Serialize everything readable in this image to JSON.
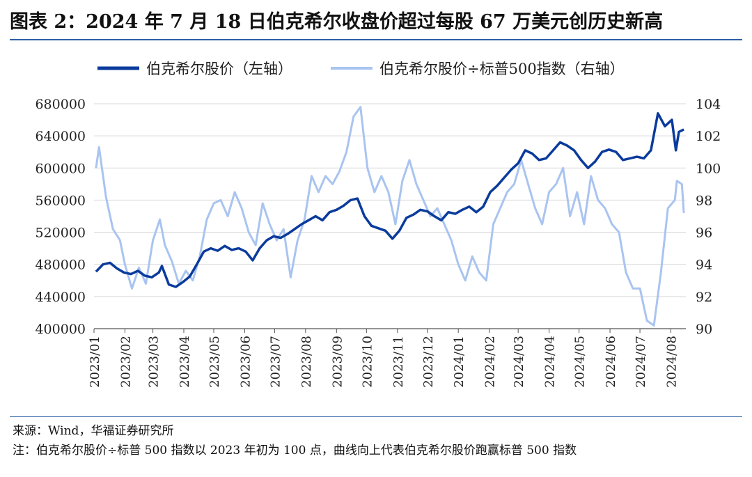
{
  "title": "图表 2：2024 年 7 月 18 日伯克希尔收盘价超过每股 67 万美元创历史新高",
  "footer": {
    "source": "来源：Wind，华福证券研究所",
    "note": "注：伯克希尔股价÷标普 500 指数以 2023 年初为 100 点，曲线向上代表伯克希尔股价跑赢标普 500 指数"
  },
  "colors": {
    "dark_series": "#0a3b9c",
    "light_series": "#a9c4f0",
    "grid": "#d9d9d9",
    "rule": "#2e5fa7"
  },
  "chart_data": {
    "type": "line",
    "x_tick_labels": [
      "2023/01",
      "2023/02",
      "2023/03",
      "2023/04",
      "2023/05",
      "2023/06",
      "2023/07",
      "2023/08",
      "2023/09",
      "2023/10",
      "2023/11",
      "2023/12",
      "2024/01",
      "2024/02",
      "2024/03",
      "2024/04",
      "2024/05",
      "2024/06",
      "2024/07",
      "2024/08"
    ],
    "y_left": {
      "ticks": [
        "400000",
        "440000",
        "480000",
        "520000",
        "560000",
        "600000",
        "640000",
        "680000"
      ],
      "range": [
        400000,
        680000
      ]
    },
    "y_right": {
      "ticks": [
        "90",
        "92",
        "94",
        "96",
        "98",
        "100",
        "102",
        "104"
      ],
      "range": [
        90,
        104
      ]
    },
    "legend_position": "top",
    "grid": "horizontal",
    "series": [
      {
        "name": "伯克希尔股价（左轴）",
        "axis": "left",
        "x": [
          "2023-01-03",
          "2023-01-10",
          "2023-01-17",
          "2023-01-24",
          "2023-01-31",
          "2023-02-07",
          "2023-02-14",
          "2023-02-21",
          "2023-02-28",
          "2023-03-07",
          "2023-03-10",
          "2023-03-17",
          "2023-03-24",
          "2023-03-31",
          "2023-04-07",
          "2023-04-14",
          "2023-04-21",
          "2023-04-28",
          "2023-05-05",
          "2023-05-12",
          "2023-05-19",
          "2023-05-26",
          "2023-06-02",
          "2023-06-09",
          "2023-06-16",
          "2023-06-23",
          "2023-06-30",
          "2023-07-07",
          "2023-07-14",
          "2023-07-21",
          "2023-07-28",
          "2023-08-04",
          "2023-08-11",
          "2023-08-18",
          "2023-08-25",
          "2023-09-01",
          "2023-09-08",
          "2023-09-15",
          "2023-09-22",
          "2023-09-29",
          "2023-10-06",
          "2023-10-13",
          "2023-10-20",
          "2023-10-27",
          "2023-11-03",
          "2023-11-10",
          "2023-11-17",
          "2023-11-24",
          "2023-12-01",
          "2023-12-08",
          "2023-12-15",
          "2023-12-22",
          "2023-12-29",
          "2024-01-05",
          "2024-01-12",
          "2024-01-19",
          "2024-01-26",
          "2024-02-02",
          "2024-02-09",
          "2024-02-16",
          "2024-02-23",
          "2024-03-01",
          "2024-03-08",
          "2024-03-15",
          "2024-03-22",
          "2024-03-29",
          "2024-04-05",
          "2024-04-12",
          "2024-04-19",
          "2024-04-26",
          "2024-05-03",
          "2024-05-10",
          "2024-05-17",
          "2024-05-24",
          "2024-05-31",
          "2024-06-07",
          "2024-06-14",
          "2024-06-21",
          "2024-06-28",
          "2024-07-05",
          "2024-07-12",
          "2024-07-19",
          "2024-07-26",
          "2024-08-02",
          "2024-08-06",
          "2024-08-09",
          "2024-08-14"
        ],
        "y": [
          471000,
          480000,
          482000,
          475000,
          470000,
          468000,
          472000,
          466000,
          464000,
          470000,
          478000,
          455000,
          452000,
          458000,
          465000,
          480000,
          496000,
          500000,
          497000,
          503000,
          498000,
          500000,
          496000,
          485000,
          500000,
          510000,
          515000,
          513000,
          518000,
          524000,
          530000,
          535000,
          540000,
          535000,
          545000,
          548000,
          553000,
          560000,
          562000,
          540000,
          528000,
          525000,
          522000,
          512000,
          522000,
          538000,
          542000,
          548000,
          546000,
          540000,
          535000,
          545000,
          543000,
          548000,
          552000,
          545000,
          552000,
          570000,
          578000,
          588000,
          598000,
          606000,
          622000,
          618000,
          610000,
          612000,
          622000,
          632000,
          628000,
          622000,
          610000,
          600000,
          608000,
          620000,
          623000,
          620000,
          610000,
          612000,
          614000,
          612000,
          622000,
          668000,
          652000,
          660000,
          622000,
          645000,
          648000
        ]
      },
      {
        "name": "伯克希尔股价÷标普500指数（右轴）",
        "axis": "right",
        "x": [
          "2023-01-03",
          "2023-01-06",
          "2023-01-13",
          "2023-01-20",
          "2023-01-27",
          "2023-02-01",
          "2023-02-08",
          "2023-02-15",
          "2023-02-22",
          "2023-03-01",
          "2023-03-08",
          "2023-03-13",
          "2023-03-20",
          "2023-03-27",
          "2023-04-03",
          "2023-04-10",
          "2023-04-17",
          "2023-04-24",
          "2023-05-01",
          "2023-05-08",
          "2023-05-15",
          "2023-05-22",
          "2023-05-29",
          "2023-06-05",
          "2023-06-12",
          "2023-06-19",
          "2023-06-26",
          "2023-07-03",
          "2023-07-10",
          "2023-07-17",
          "2023-07-24",
          "2023-07-31",
          "2023-08-07",
          "2023-08-14",
          "2023-08-21",
          "2023-08-28",
          "2023-09-04",
          "2023-09-11",
          "2023-09-18",
          "2023-09-25",
          "2023-10-02",
          "2023-10-09",
          "2023-10-16",
          "2023-10-23",
          "2023-10-30",
          "2023-11-06",
          "2023-11-13",
          "2023-11-20",
          "2023-11-27",
          "2023-12-04",
          "2023-12-11",
          "2023-12-18",
          "2023-12-25",
          "2024-01-01",
          "2024-01-08",
          "2024-01-15",
          "2024-01-22",
          "2024-01-29",
          "2024-02-05",
          "2024-02-12",
          "2024-02-19",
          "2024-02-26",
          "2024-03-04",
          "2024-03-11",
          "2024-03-18",
          "2024-03-25",
          "2024-04-01",
          "2024-04-08",
          "2024-04-15",
          "2024-04-22",
          "2024-04-29",
          "2024-05-06",
          "2024-05-13",
          "2024-05-20",
          "2024-05-27",
          "2024-06-03",
          "2024-06-10",
          "2024-06-17",
          "2024-06-24",
          "2024-07-01",
          "2024-07-08",
          "2024-07-15",
          "2024-07-22",
          "2024-07-29",
          "2024-08-05",
          "2024-08-07",
          "2024-08-12",
          "2024-08-14"
        ],
        "y": [
          100.0,
          101.3,
          98.2,
          96.2,
          95.5,
          94.0,
          92.5,
          93.8,
          92.8,
          95.5,
          96.8,
          95.2,
          94.2,
          92.8,
          93.6,
          93.0,
          94.5,
          96.8,
          97.8,
          98.0,
          97.0,
          98.5,
          97.5,
          96.0,
          95.2,
          97.8,
          96.5,
          95.5,
          96.2,
          93.2,
          95.5,
          96.8,
          99.5,
          98.5,
          99.5,
          99.0,
          99.8,
          101.0,
          103.2,
          103.8,
          100.0,
          98.5,
          99.5,
          98.5,
          96.5,
          99.2,
          100.5,
          99.0,
          98.0,
          97.0,
          97.5,
          96.5,
          95.5,
          94.0,
          93.0,
          94.5,
          93.5,
          93.0,
          96.5,
          97.5,
          98.5,
          99.0,
          100.5,
          99.0,
          97.5,
          96.5,
          98.5,
          99.0,
          100.0,
          97.0,
          98.5,
          96.5,
          99.5,
          98.0,
          97.5,
          96.5,
          96.0,
          93.5,
          92.5,
          92.5,
          90.5,
          90.2,
          93.5,
          97.5,
          98.0,
          99.2,
          99.0,
          97.2
        ]
      }
    ]
  }
}
